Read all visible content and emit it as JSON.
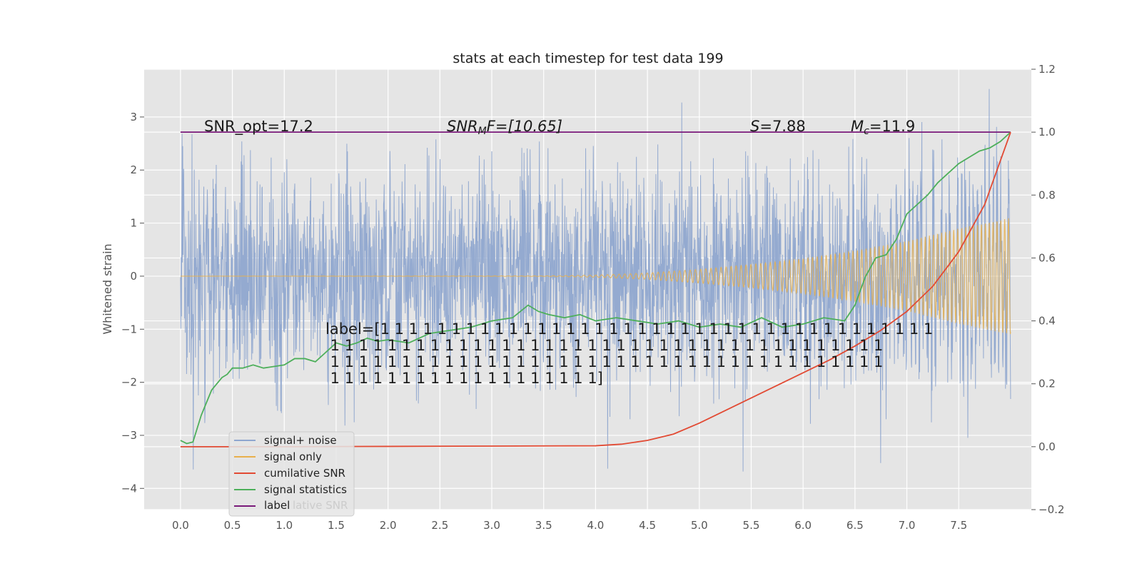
{
  "chart_data": {
    "type": "line",
    "title": "stats at each timestep for test data 199",
    "ylabel": "Whitened strain",
    "y2label": "",
    "xlim": [
      -0.35,
      8.2
    ],
    "ylim": [
      -4.4,
      3.9
    ],
    "y2lim": [
      -0.2,
      1.2
    ],
    "x_ticks": [
      "0.0",
      "0.5",
      "1.0",
      "1.5",
      "2.0",
      "2.5",
      "3.0",
      "3.5",
      "4.0",
      "4.5",
      "5.0",
      "5.5",
      "6.0",
      "6.5",
      "7.0",
      "7.5"
    ],
    "y_ticks": [
      3,
      2,
      1,
      0,
      -1,
      -2,
      -3,
      -4
    ],
    "y_tick_labels": [
      "3",
      "2",
      "1",
      "0",
      "−1",
      "−2",
      "−3",
      "−4"
    ],
    "y2_ticks": [
      1.2,
      1.0,
      0.8,
      0.6,
      0.4,
      0.2,
      0.0,
      -0.2
    ],
    "y2_tick_labels": [
      "1.2",
      "1.0",
      "0.8",
      "0.6",
      "0.4",
      "0.2",
      "0.0",
      "−0.2"
    ],
    "grid": true,
    "legend_placement": "lower-left",
    "colors": {
      "signal_noise": "#8fa6cf",
      "signal_only": "#e8b04c",
      "cumulative_snr": "#e24a33",
      "signal_statistics": "#4daf5a",
      "label": "#7a1a7a",
      "axes_bg": "#e5e5e5",
      "grid": "#ffffff"
    },
    "series": [
      {
        "name": "signal+ noise",
        "axis": "left",
        "duration": 8.0,
        "noise_std": 0.95,
        "range": [
          -4.05,
          3.6
        ]
      },
      {
        "name": "signal only",
        "axis": "left",
        "amplitude_x": [
          0,
          3.5,
          4.0,
          4.5,
          5.0,
          5.5,
          6.0,
          6.5,
          7.0,
          7.5,
          8.0
        ],
        "amplitude": [
          0.0,
          0.005,
          0.02,
          0.06,
          0.13,
          0.22,
          0.33,
          0.48,
          0.66,
          0.9,
          1.1
        ]
      },
      {
        "name": "cumilative SNR",
        "axis": "right",
        "x": [
          0,
          0.5,
          1.0,
          2.0,
          3.0,
          4.0,
          4.25,
          4.5,
          4.75,
          5.0,
          5.25,
          5.5,
          5.75,
          6.0,
          6.25,
          6.5,
          6.75,
          7.0,
          7.25,
          7.5,
          7.75,
          8.0
        ],
        "y": [
          0.0,
          0.0,
          0.0,
          0.001,
          0.002,
          0.003,
          0.008,
          0.02,
          0.04,
          0.075,
          0.115,
          0.155,
          0.195,
          0.235,
          0.275,
          0.32,
          0.37,
          0.43,
          0.51,
          0.62,
          0.77,
          1.0
        ]
      },
      {
        "name": "signal statistics",
        "axis": "right",
        "x": [
          0,
          0.06,
          0.12,
          0.2,
          0.3,
          0.35,
          0.4,
          0.45,
          0.5,
          0.55,
          0.6,
          0.7,
          0.8,
          0.9,
          1.0,
          1.1,
          1.2,
          1.3,
          1.4,
          1.5,
          1.6,
          1.7,
          1.8,
          1.9,
          2.0,
          2.2,
          2.4,
          2.6,
          2.8,
          3.0,
          3.2,
          3.35,
          3.45,
          3.55,
          3.7,
          3.85,
          4.0,
          4.2,
          4.4,
          4.6,
          4.8,
          5.0,
          5.2,
          5.4,
          5.6,
          5.8,
          6.0,
          6.2,
          6.4,
          6.5,
          6.6,
          6.7,
          6.8,
          6.9,
          7.0,
          7.1,
          7.2,
          7.3,
          7.4,
          7.5,
          7.6,
          7.7,
          7.8,
          7.9,
          8.0
        ],
        "y": [
          0.02,
          0.01,
          0.015,
          0.1,
          0.18,
          0.2,
          0.22,
          0.23,
          0.25,
          0.25,
          0.25,
          0.26,
          0.25,
          0.255,
          0.26,
          0.28,
          0.28,
          0.27,
          0.3,
          0.33,
          0.32,
          0.33,
          0.345,
          0.335,
          0.34,
          0.33,
          0.36,
          0.37,
          0.38,
          0.4,
          0.41,
          0.45,
          0.43,
          0.42,
          0.41,
          0.42,
          0.4,
          0.41,
          0.4,
          0.39,
          0.4,
          0.38,
          0.39,
          0.38,
          0.41,
          0.38,
          0.39,
          0.41,
          0.4,
          0.45,
          0.54,
          0.6,
          0.61,
          0.66,
          0.74,
          0.77,
          0.8,
          0.84,
          0.87,
          0.9,
          0.92,
          0.94,
          0.95,
          0.97,
          1.0
        ]
      },
      {
        "name": "label",
        "axis": "right",
        "x": [
          0,
          8.0
        ],
        "y": [
          1.0,
          1.0
        ]
      }
    ],
    "annotations": {
      "snr_opt": "SNR_opt=17.2",
      "snr_mf_base": "SNR",
      "snr_mf_sub": "M",
      "snr_mf_rest": "F=[10.65]",
      "s_stat_sym": "S",
      "s_stat_val": "=7.88",
      "mc_sym": "M",
      "mc_sub": "c",
      "mc_val": "=11.9",
      "label_lines": [
        "label=[1 1 1 1 1 1 1 1 1 1 1 1 1 1 1 1 1 1 1 1 1 1 1 1 1 1 1 1 1 1 1 1 1 1 1 1 1 1 1",
        " 1 1 1 1 1 1 1 1 1 1 1 1 1 1 1 1 1 1 1 1 1 1 1 1 1 1 1 1 1 1 1 1 1 1 1 1 1 1 1",
        " 1 1 1 1 1 1 1 1 1 1 1 1 1 1 1 1 1 1 1 1 1 1 1 1 1 1 1 1 1 1 1 1 1 1 1 1 1 1 1",
        " 1 1 1 1 1 1 1 1 1 1 1 1 1 1 1 1 1 1 1]"
      ]
    },
    "legend": [
      {
        "label": "signal+ noise",
        "color": "#8fa6cf"
      },
      {
        "label": "signal only",
        "color": "#e8b04c"
      },
      {
        "label": "cumilative SNR",
        "color": "#e24a33"
      },
      {
        "label": "signal statistics",
        "color": "#4daf5a"
      },
      {
        "label": "label",
        "color": "#7a1a7a"
      }
    ],
    "legend_ghost": "lative SNR"
  }
}
